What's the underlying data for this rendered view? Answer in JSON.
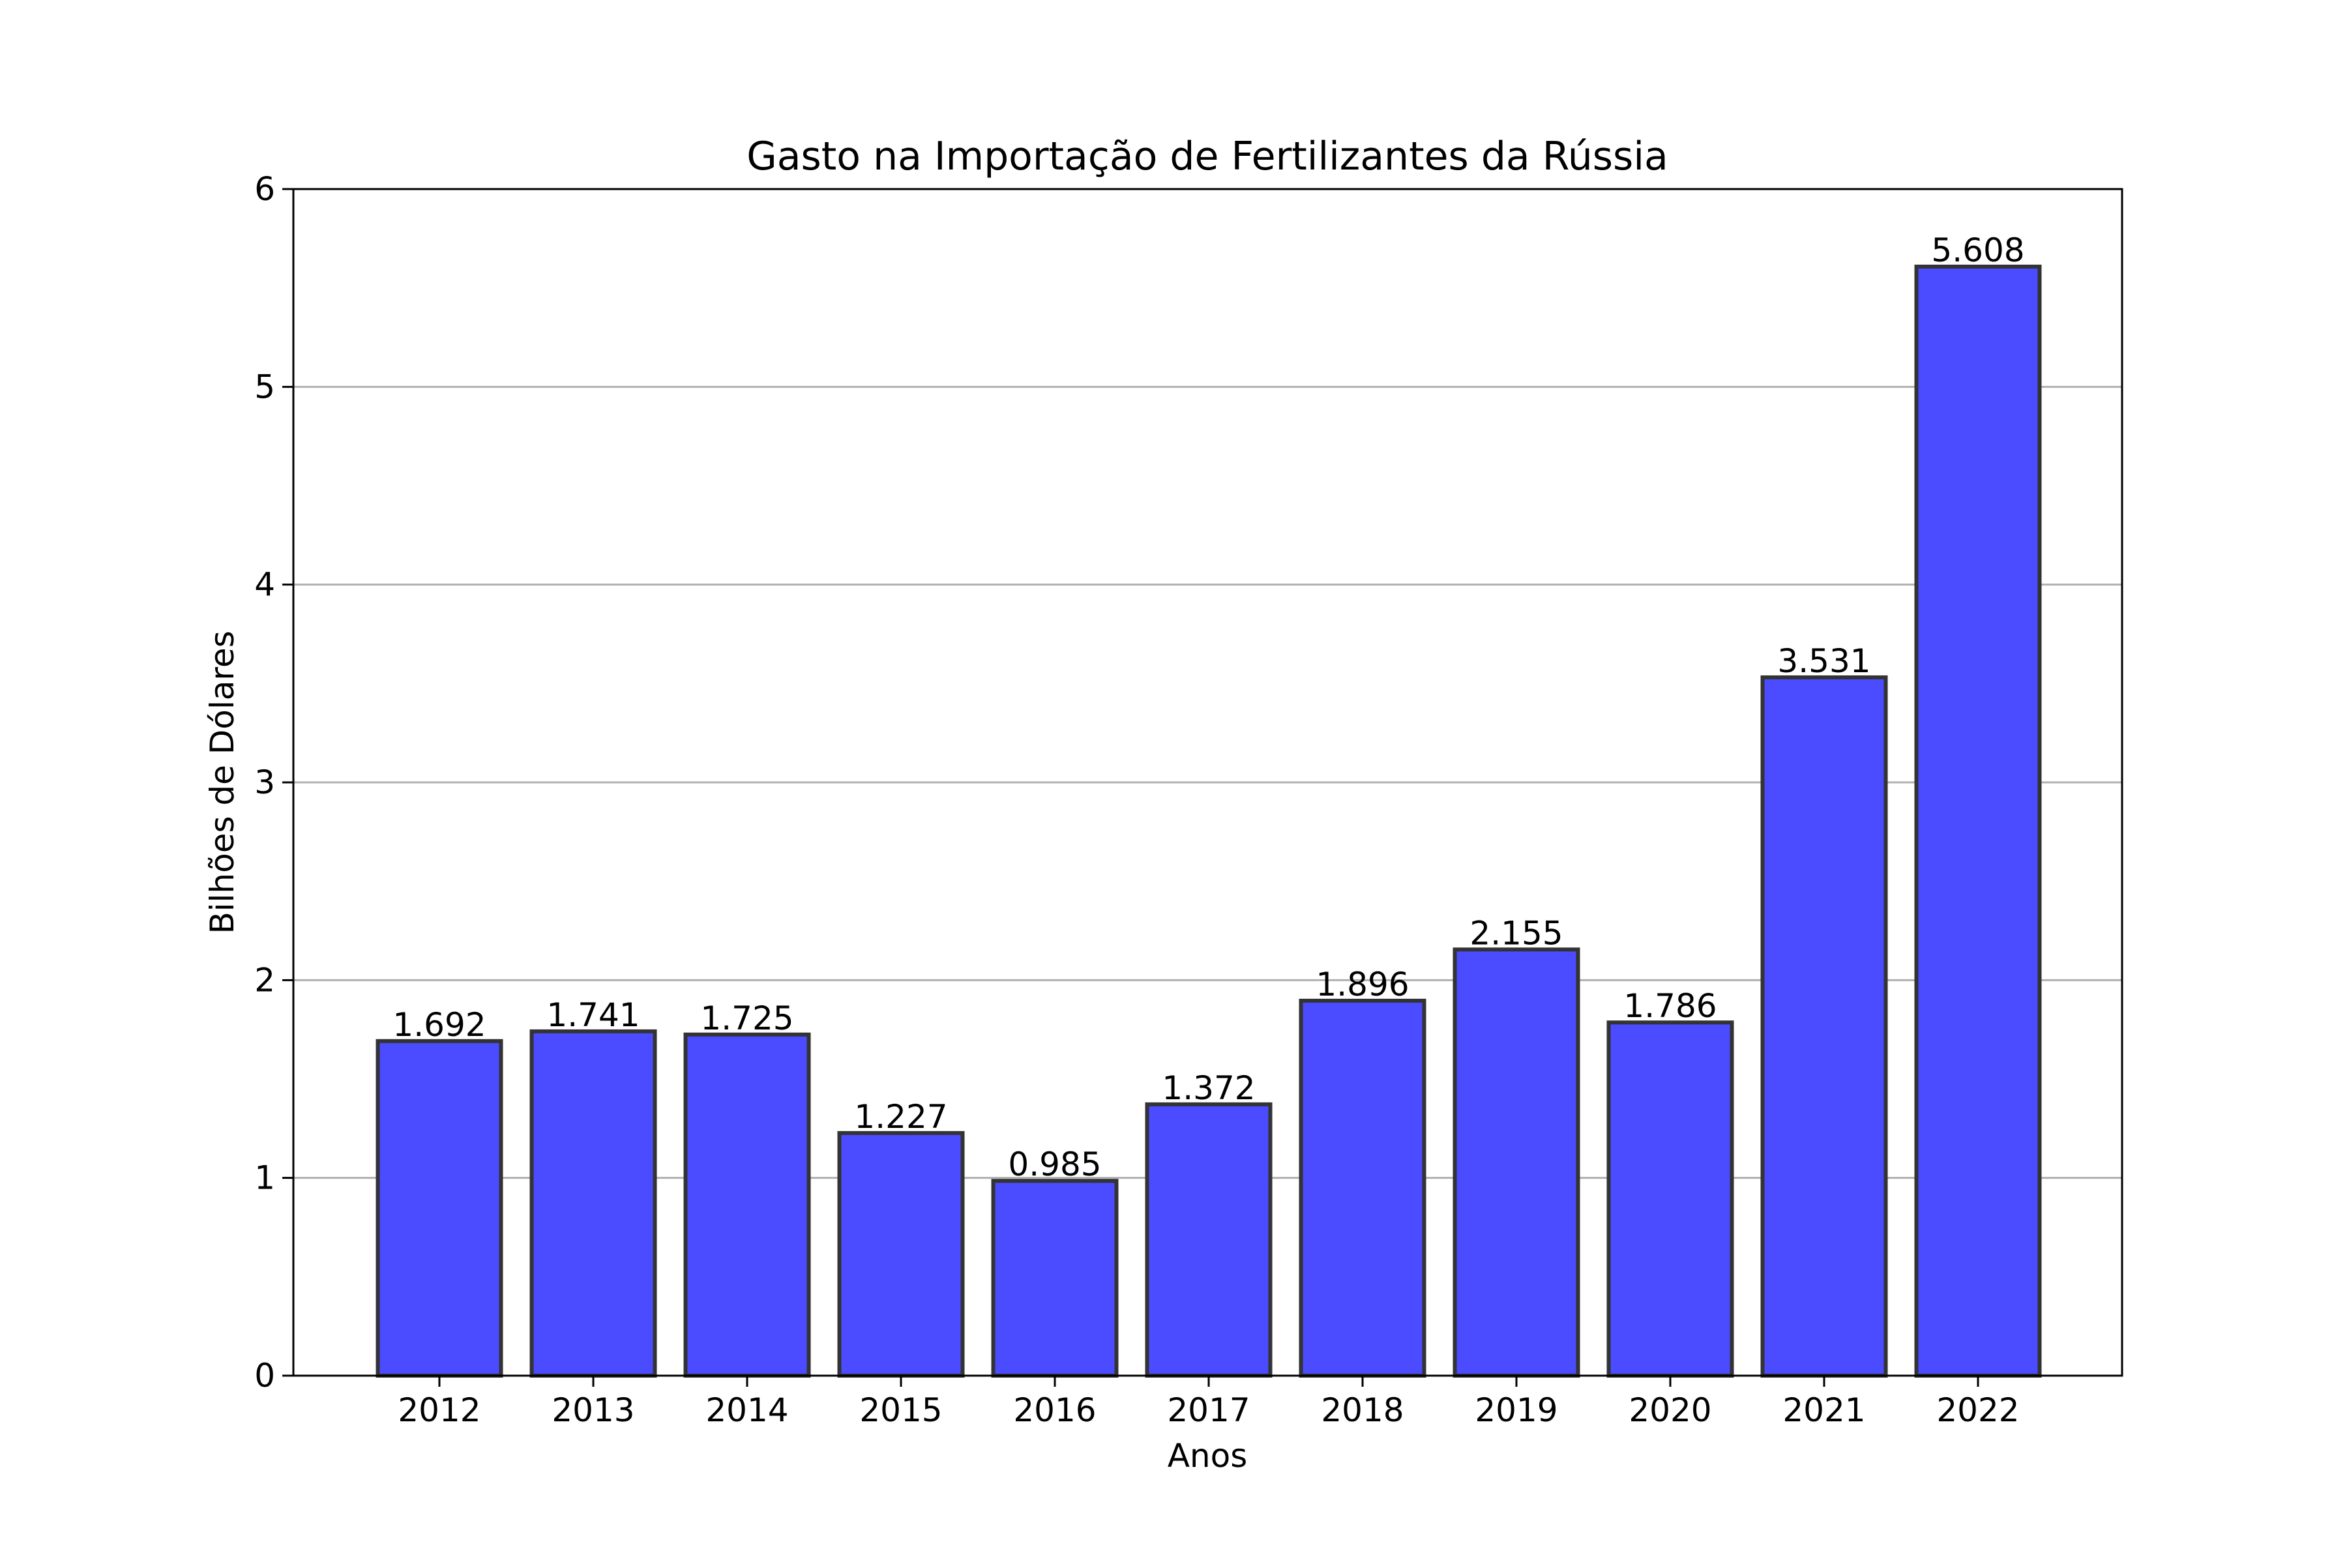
{
  "chart_data": {
    "type": "bar",
    "title": "Gasto na Importação de Fertilizantes da Rússia",
    "xlabel": "Anos",
    "ylabel": "Bilhões de Dólares",
    "categories": [
      "2012",
      "2013",
      "2014",
      "2015",
      "2016",
      "2017",
      "2018",
      "2019",
      "2020",
      "2021",
      "2022"
    ],
    "values": [
      1.692,
      1.741,
      1.725,
      1.227,
      0.985,
      1.372,
      1.896,
      2.155,
      1.786,
      3.531,
      5.608
    ],
    "value_labels": [
      "1.692",
      "1.741",
      "1.725",
      "1.227",
      "0.985",
      "1.372",
      "1.896",
      "2.155",
      "1.786",
      "3.531",
      "5.608"
    ],
    "ylim": [
      0,
      6
    ],
    "yticks": [
      0,
      1,
      2,
      3,
      4,
      5,
      6
    ],
    "ytick_labels": [
      "0",
      "1",
      "2",
      "3",
      "4",
      "5",
      "6"
    ],
    "grid": "y-axis",
    "colors": {
      "bar_fill": "#4b4bff",
      "bar_edge": "#333333",
      "grid": "#b0b0b0",
      "axis": "#000000"
    }
  }
}
